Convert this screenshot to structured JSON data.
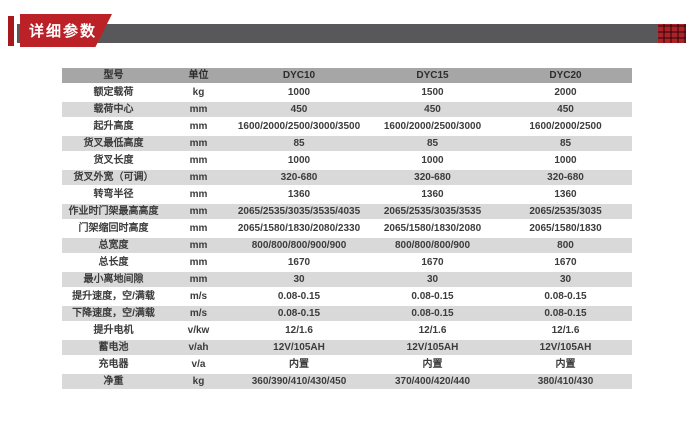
{
  "header": {
    "title": "详细参数",
    "accent_color": "#a8181d",
    "badge_color": "#bb2127",
    "bar_color": "#58585a"
  },
  "table": {
    "header_row_bg": "#a6a6a6",
    "stripe_bg": "#d9d9d9",
    "columns": [
      "型号",
      "单位",
      "DYC10",
      "DYC15",
      "DYC20"
    ],
    "rows": [
      [
        "额定载荷",
        "kg",
        "1000",
        "1500",
        "2000"
      ],
      [
        "载荷中心",
        "mm",
        "450",
        "450",
        "450"
      ],
      [
        "起升高度",
        "mm",
        "1600/2000/2500/3000/3500",
        "1600/2000/2500/3000",
        "1600/2000/2500"
      ],
      [
        "货叉最低高度",
        "mm",
        "85",
        "85",
        "85"
      ],
      [
        "货叉长度",
        "mm",
        "1000",
        "1000",
        "1000"
      ],
      [
        "货叉外宽（可调）",
        "mm",
        "320-680",
        "320-680",
        "320-680"
      ],
      [
        "转弯半径",
        "mm",
        "1360",
        "1360",
        "1360"
      ],
      [
        "作业时门架最高高度",
        "mm",
        "2065/2535/3035/3535/4035",
        "2065/2535/3035/3535",
        "2065/2535/3035"
      ],
      [
        "门架缩回时高度",
        "mm",
        "2065/1580/1830/2080/2330",
        "2065/1580/1830/2080",
        "2065/1580/1830"
      ],
      [
        "总宽度",
        "mm",
        "800/800/800/900/900",
        "800/800/800/900",
        "800"
      ],
      [
        "总长度",
        "mm",
        "1670",
        "1670",
        "1670"
      ],
      [
        "最小离地间隙",
        "mm",
        "30",
        "30",
        "30"
      ],
      [
        "提升速度，空/满载",
        "m/s",
        "0.08-0.15",
        "0.08-0.15",
        "0.08-0.15"
      ],
      [
        "下降速度，空/满载",
        "m/s",
        "0.08-0.15",
        "0.08-0.15",
        "0.08-0.15"
      ],
      [
        "提升电机",
        "v/kw",
        "12/1.6",
        "12/1.6",
        "12/1.6"
      ],
      [
        "蓄电池",
        "v/ah",
        "12V/105AH",
        "12V/105AH",
        "12V/105AH"
      ],
      [
        "充电器",
        "v/a",
        "内置",
        "内置",
        "内置"
      ],
      [
        "净重",
        "kg",
        "360/390/410/430/450",
        "370/400/420/440",
        "380/410/430"
      ]
    ]
  }
}
